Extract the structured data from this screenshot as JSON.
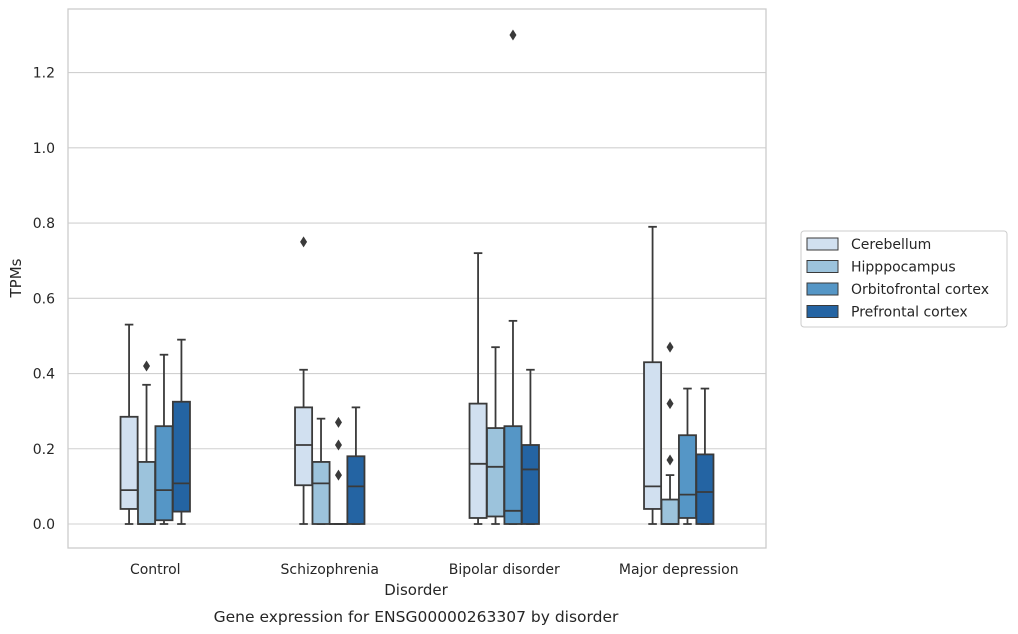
{
  "chart_data": {
    "type": "box",
    "title": "",
    "caption": "Gene expression for ENSG00000263307 by disorder",
    "xlabel": "Disorder",
    "ylabel": "TPMs",
    "categories": [
      "Control",
      "Schizophrenia",
      "Bipolar disorder",
      "Major depression"
    ],
    "ylim": [
      -0.063,
      1.37
    ],
    "yticks": [
      0.0,
      0.2,
      0.4,
      0.6,
      0.8,
      1.0,
      1.2
    ],
    "ytick_labels": [
      "0.0",
      "0.2",
      "0.4",
      "0.6",
      "0.8",
      "1.0",
      "1.2"
    ],
    "grid": "horizontal",
    "legend_position": "right",
    "series": [
      {
        "name": "Cerebellum",
        "color": "#d1e0f0",
        "boxes": [
          {
            "whislo": 0.0,
            "q1": 0.04,
            "med": 0.09,
            "q3": 0.285,
            "whishi": 0.53,
            "fliers": []
          },
          {
            "whislo": 0.0,
            "q1": 0.103,
            "med": 0.21,
            "q3": 0.31,
            "whishi": 0.41,
            "fliers": [
              0.75
            ]
          },
          {
            "whislo": 0.0,
            "q1": 0.016,
            "med": 0.16,
            "q3": 0.32,
            "whishi": 0.72,
            "fliers": []
          },
          {
            "whislo": 0.0,
            "q1": 0.04,
            "med": 0.1,
            "q3": 0.43,
            "whishi": 0.79,
            "fliers": []
          }
        ]
      },
      {
        "name": "Hipppocampus",
        "color": "#9cc3dc",
        "boxes": [
          {
            "whislo": 0.0,
            "q1": 0.0,
            "med": 0.0,
            "q3": 0.165,
            "whishi": 0.37,
            "fliers": [
              0.42
            ]
          },
          {
            "whislo": 0.0,
            "q1": 0.0,
            "med": 0.108,
            "q3": 0.165,
            "whishi": 0.28,
            "fliers": []
          },
          {
            "whislo": 0.0,
            "q1": 0.02,
            "med": 0.152,
            "q3": 0.255,
            "whishi": 0.47,
            "fliers": []
          },
          {
            "whislo": 0.0,
            "q1": 0.0,
            "med": 0.0,
            "q3": 0.065,
            "whishi": 0.13,
            "fliers": [
              0.17,
              0.32,
              0.47
            ]
          }
        ]
      },
      {
        "name": "Orbitofrontal cortex",
        "color": "#5596c6",
        "boxes": [
          {
            "whislo": 0.0,
            "q1": 0.01,
            "med": 0.09,
            "q3": 0.26,
            "whishi": 0.45,
            "fliers": []
          },
          {
            "whislo": 0.0,
            "q1": 0.0,
            "med": 0.0,
            "q3": 0.0,
            "whishi": 0.0,
            "fliers": [
              0.13,
              0.21,
              0.27
            ]
          },
          {
            "whislo": 0.0,
            "q1": 0.0,
            "med": 0.035,
            "q3": 0.26,
            "whishi": 0.54,
            "fliers": [
              1.3
            ]
          },
          {
            "whislo": 0.0,
            "q1": 0.016,
            "med": 0.078,
            "q3": 0.236,
            "whishi": 0.36,
            "fliers": []
          }
        ]
      },
      {
        "name": "Prefrontal cortex",
        "color": "#2464a3",
        "boxes": [
          {
            "whislo": 0.0,
            "q1": 0.033,
            "med": 0.108,
            "q3": 0.325,
            "whishi": 0.49,
            "fliers": []
          },
          {
            "whislo": 0.0,
            "q1": 0.0,
            "med": 0.1,
            "q3": 0.18,
            "whishi": 0.31,
            "fliers": []
          },
          {
            "whislo": 0.0,
            "q1": 0.0,
            "med": 0.145,
            "q3": 0.21,
            "whishi": 0.41,
            "fliers": []
          },
          {
            "whislo": 0.0,
            "q1": 0.0,
            "med": 0.085,
            "q3": 0.185,
            "whishi": 0.36,
            "fliers": []
          }
        ]
      }
    ]
  }
}
